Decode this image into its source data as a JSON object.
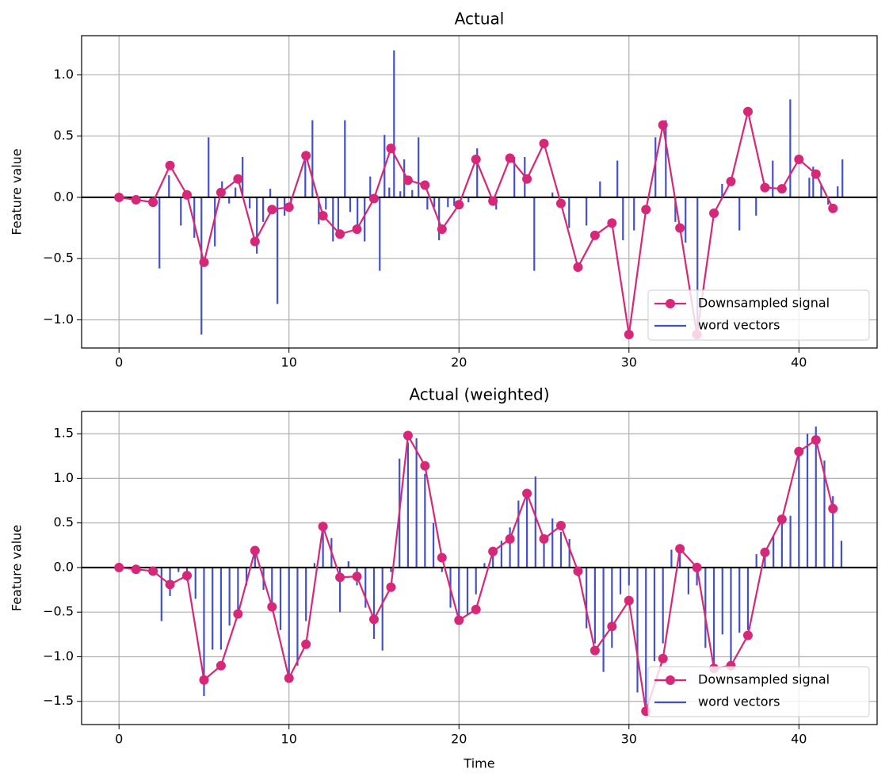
{
  "chart_data": [
    {
      "type": "line",
      "title": "Actual",
      "ylabel": "Feature value",
      "xlim": [
        -2.2,
        44.6
      ],
      "ylim": [
        -1.23,
        1.32
      ],
      "xticks": [
        0,
        10,
        20,
        30,
        40
      ],
      "yticks": [
        {
          "value": -1.0,
          "label": "−1.0"
        },
        {
          "value": -0.5,
          "label": "−0.5"
        },
        {
          "value": 0.0,
          "label": "0.0"
        },
        0.5,
        {
          "value": 1.0,
          "label": "1.0"
        }
      ],
      "grid": true,
      "legend": "lower right",
      "series": [
        {
          "name": "Downsampled signal",
          "type": "line",
          "color": "#d62778",
          "x": [
            0,
            1,
            2,
            3,
            4,
            5,
            6,
            7,
            8,
            9,
            10,
            11,
            12,
            13,
            14,
            15,
            16,
            17,
            18,
            19,
            20,
            21,
            22,
            23,
            24,
            25,
            26,
            27,
            28,
            29,
            30,
            31,
            32,
            33,
            34,
            35,
            36,
            37,
            38,
            39,
            40,
            41,
            42
          ],
          "values": [
            0,
            -0.02,
            -0.04,
            0.26,
            0.02,
            -0.53,
            0.04,
            0.15,
            -0.36,
            -0.1,
            -0.08,
            0.34,
            -0.15,
            -0.3,
            -0.26,
            -0.01,
            0.4,
            0.14,
            0.1,
            -0.26,
            -0.06,
            0.31,
            -0.03,
            0.32,
            0.15,
            0.44,
            -0.05,
            -0.57,
            -0.31,
            -0.21,
            -1.12,
            -0.1,
            0.59,
            -0.25,
            -1.12,
            -0.13,
            0.13,
            0.7,
            0.08,
            0.07,
            0.31,
            0.19,
            -0.09
          ]
        },
        {
          "name": "word vectors",
          "type": "vlines",
          "color": "#4450c8",
          "x": [
            2.38,
            2.94,
            3.64,
            4.43,
            4.85,
            5.27,
            5.64,
            6.06,
            6.48,
            6.85,
            7.27,
            7.69,
            8.11,
            8.48,
            8.9,
            9.32,
            9.74,
            10.12,
            10.96,
            11.38,
            11.75,
            12.17,
            12.59,
            12.9,
            13.29,
            13.6,
            14.03,
            14.45,
            14.78,
            15.34,
            15.62,
            15.9,
            16.18,
            16.55,
            16.78,
            17.25,
            17.62,
            18.14,
            18.55,
            18.83,
            19.35,
            19.72,
            20.56,
            21.07,
            22.19,
            23.26,
            23.87,
            24.43,
            25.5,
            26.48,
            27.5,
            28.3,
            29.32,
            29.65,
            30.3,
            31.56,
            32.17,
            32.73,
            33.33,
            34.03,
            35.48,
            36.5,
            37.48,
            38.46,
            39.49,
            40.61,
            40.84,
            41.31,
            41.72,
            42.28,
            42.56
          ],
          "values": [
            -0.58,
            0.18,
            -0.23,
            -0.33,
            -1.12,
            0.49,
            -0.4,
            0.13,
            -0.05,
            0.08,
            0.33,
            -0.09,
            -0.46,
            -0.2,
            0.07,
            -0.87,
            -0.15,
            -0.1,
            0.3,
            0.63,
            -0.22,
            -0.1,
            -0.36,
            -0.32,
            0.63,
            -0.12,
            -0.25,
            -0.36,
            0.17,
            -0.6,
            0.51,
            0.08,
            1.2,
            0.05,
            0.31,
            0.06,
            0.49,
            -0.1,
            -0.08,
            -0.35,
            -0.08,
            -0.07,
            -0.04,
            0.4,
            -0.1,
            0.33,
            0.33,
            -0.6,
            0.04,
            -0.25,
            -0.23,
            0.13,
            0.3,
            -0.35,
            -0.27,
            0.49,
            0.63,
            -0.2,
            -0.37,
            -1.05,
            0.11,
            -0.27,
            -0.15,
            0.3,
            0.8,
            0.16,
            0.25,
            0.1,
            -0.06,
            0.09,
            0.31
          ]
        }
      ]
    },
    {
      "type": "line",
      "title": "Actual (weighted)",
      "ylabel": "Feature value",
      "xlabel": "Time",
      "xlim": [
        -2.2,
        44.6
      ],
      "ylim": [
        -1.76,
        1.75
      ],
      "xticks": [
        0,
        10,
        20,
        30,
        40
      ],
      "yticks": [
        {
          "value": -1.5,
          "label": "−1.5"
        },
        {
          "value": -1.0,
          "label": "−1.0"
        },
        {
          "value": -0.5,
          "label": "−0.5"
        },
        {
          "value": 0.0,
          "label": "0.0"
        },
        0.5,
        {
          "value": 1.0,
          "label": "1.0"
        },
        1.5
      ],
      "grid": true,
      "legend": "lower right",
      "series": [
        {
          "name": "Downsampled signal",
          "type": "line",
          "color": "#d62778",
          "x": [
            0,
            1,
            2,
            3,
            4,
            5,
            6,
            7,
            8,
            9,
            10,
            11,
            12,
            13,
            14,
            15,
            16,
            17,
            18,
            19,
            20,
            21,
            22,
            23,
            24,
            25,
            26,
            27,
            28,
            29,
            30,
            31,
            32,
            33,
            34,
            35,
            36,
            37,
            38,
            39,
            40,
            41,
            42
          ],
          "values": [
            0,
            -0.02,
            -0.04,
            -0.19,
            -0.09,
            -1.26,
            -1.1,
            -0.52,
            0.19,
            -0.44,
            -1.24,
            -0.86,
            0.46,
            -0.11,
            -0.1,
            -0.58,
            -0.22,
            1.48,
            1.14,
            0.11,
            -0.59,
            -0.47,
            0.18,
            0.32,
            0.83,
            0.32,
            0.47,
            -0.04,
            -0.93,
            -0.66,
            -0.37,
            -1.61,
            -1.02,
            0.21,
            0,
            -1.13,
            -1.1,
            -0.76,
            0.17,
            0.54,
            1.3,
            1.43,
            0.66
          ]
        },
        {
          "name": "word vectors",
          "type": "vlines",
          "color": "#4450c8",
          "x": [
            2.5,
            3,
            3.5,
            4,
            4.5,
            5,
            5.5,
            6,
            6.5,
            7,
            7.5,
            8,
            8.5,
            9,
            9.5,
            10,
            10.5,
            11,
            11.5,
            12,
            12.5,
            13,
            13.5,
            14,
            14.5,
            15,
            15.5,
            16,
            16.5,
            17,
            17.5,
            18,
            18.5,
            19,
            19.5,
            20,
            20.5,
            21,
            21.5,
            22,
            22.5,
            23,
            23.5,
            24,
            24.5,
            25,
            25.5,
            26,
            26.5,
            27,
            27.5,
            28,
            28.5,
            29,
            29.5,
            30,
            30.5,
            31,
            31.5,
            32,
            32.5,
            33,
            33.5,
            34,
            34.5,
            35,
            35.5,
            36,
            36.5,
            37,
            37.5,
            38,
            38.5,
            39,
            39.5,
            40,
            40.5,
            41,
            41.5,
            42,
            42.5
          ],
          "values": [
            -0.6,
            -0.32,
            -0.05,
            -0.15,
            -0.35,
            -1.44,
            -0.92,
            -0.92,
            -0.65,
            -0.5,
            -0.2,
            0.15,
            -0.25,
            -0.4,
            -0.7,
            -1.2,
            -1.1,
            -0.6,
            0.05,
            0.42,
            0.33,
            -0.5,
            0.07,
            -0.2,
            -0.45,
            -0.8,
            -0.93,
            -0.05,
            1.22,
            1.4,
            1.45,
            1.05,
            0.5,
            -0.05,
            -0.45,
            -0.55,
            -0.52,
            -0.3,
            0.05,
            0.15,
            0.3,
            0.45,
            0.75,
            0.8,
            1.02,
            0.3,
            0.55,
            0.4,
            0.32,
            -0.1,
            -0.68,
            -0.85,
            -1.17,
            -0.9,
            -0.3,
            -0.2,
            -1.4,
            -1.55,
            -1.05,
            -0.85,
            0.2,
            0.25,
            -0.3,
            -0.2,
            -0.9,
            -1.1,
            -0.75,
            -1.1,
            -0.73,
            -0.7,
            0.15,
            0.2,
            0.35,
            0.5,
            0.58,
            1.3,
            1.5,
            1.58,
            1.2,
            0.8,
            0.3
          ]
        }
      ]
    }
  ]
}
